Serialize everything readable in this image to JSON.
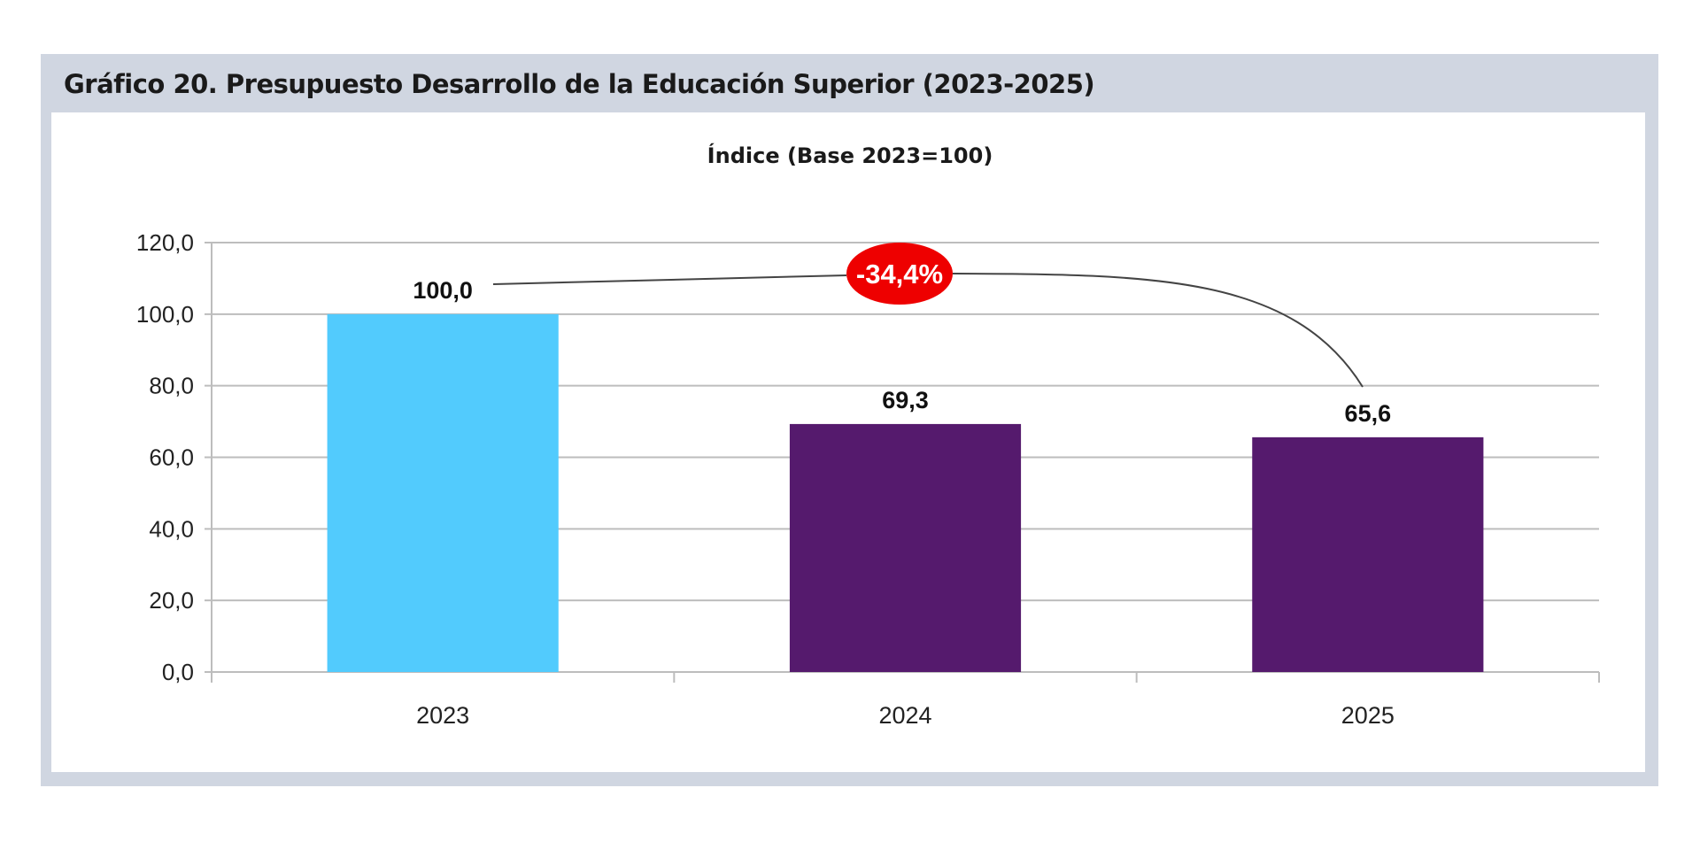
{
  "chart_data": {
    "type": "bar",
    "title": "Gráfico 20. Presupuesto Desarrollo de la Educación Superior (2023-2025)",
    "subtitle": "Índice (Base 2023=100)",
    "categories": [
      "2023",
      "2024",
      "2025"
    ],
    "values": [
      100.0,
      69.3,
      65.6
    ],
    "value_labels": [
      "100,0",
      "69,3",
      "65,6"
    ],
    "bar_colors": [
      "#52cbfd",
      "#551a6d",
      "#551a6d"
    ],
    "ylim": [
      0,
      120
    ],
    "yticks": [
      0,
      20,
      40,
      60,
      80,
      100,
      120
    ],
    "ytick_labels": [
      "0,0",
      "20,0",
      "40,0",
      "60,0",
      "80,0",
      "100,0",
      "120,0"
    ],
    "grid": true,
    "xlabel": "",
    "ylabel": "",
    "annotation": {
      "text": "-34,4%",
      "color": "#ee0000",
      "from": "2023",
      "to": "2025"
    }
  }
}
